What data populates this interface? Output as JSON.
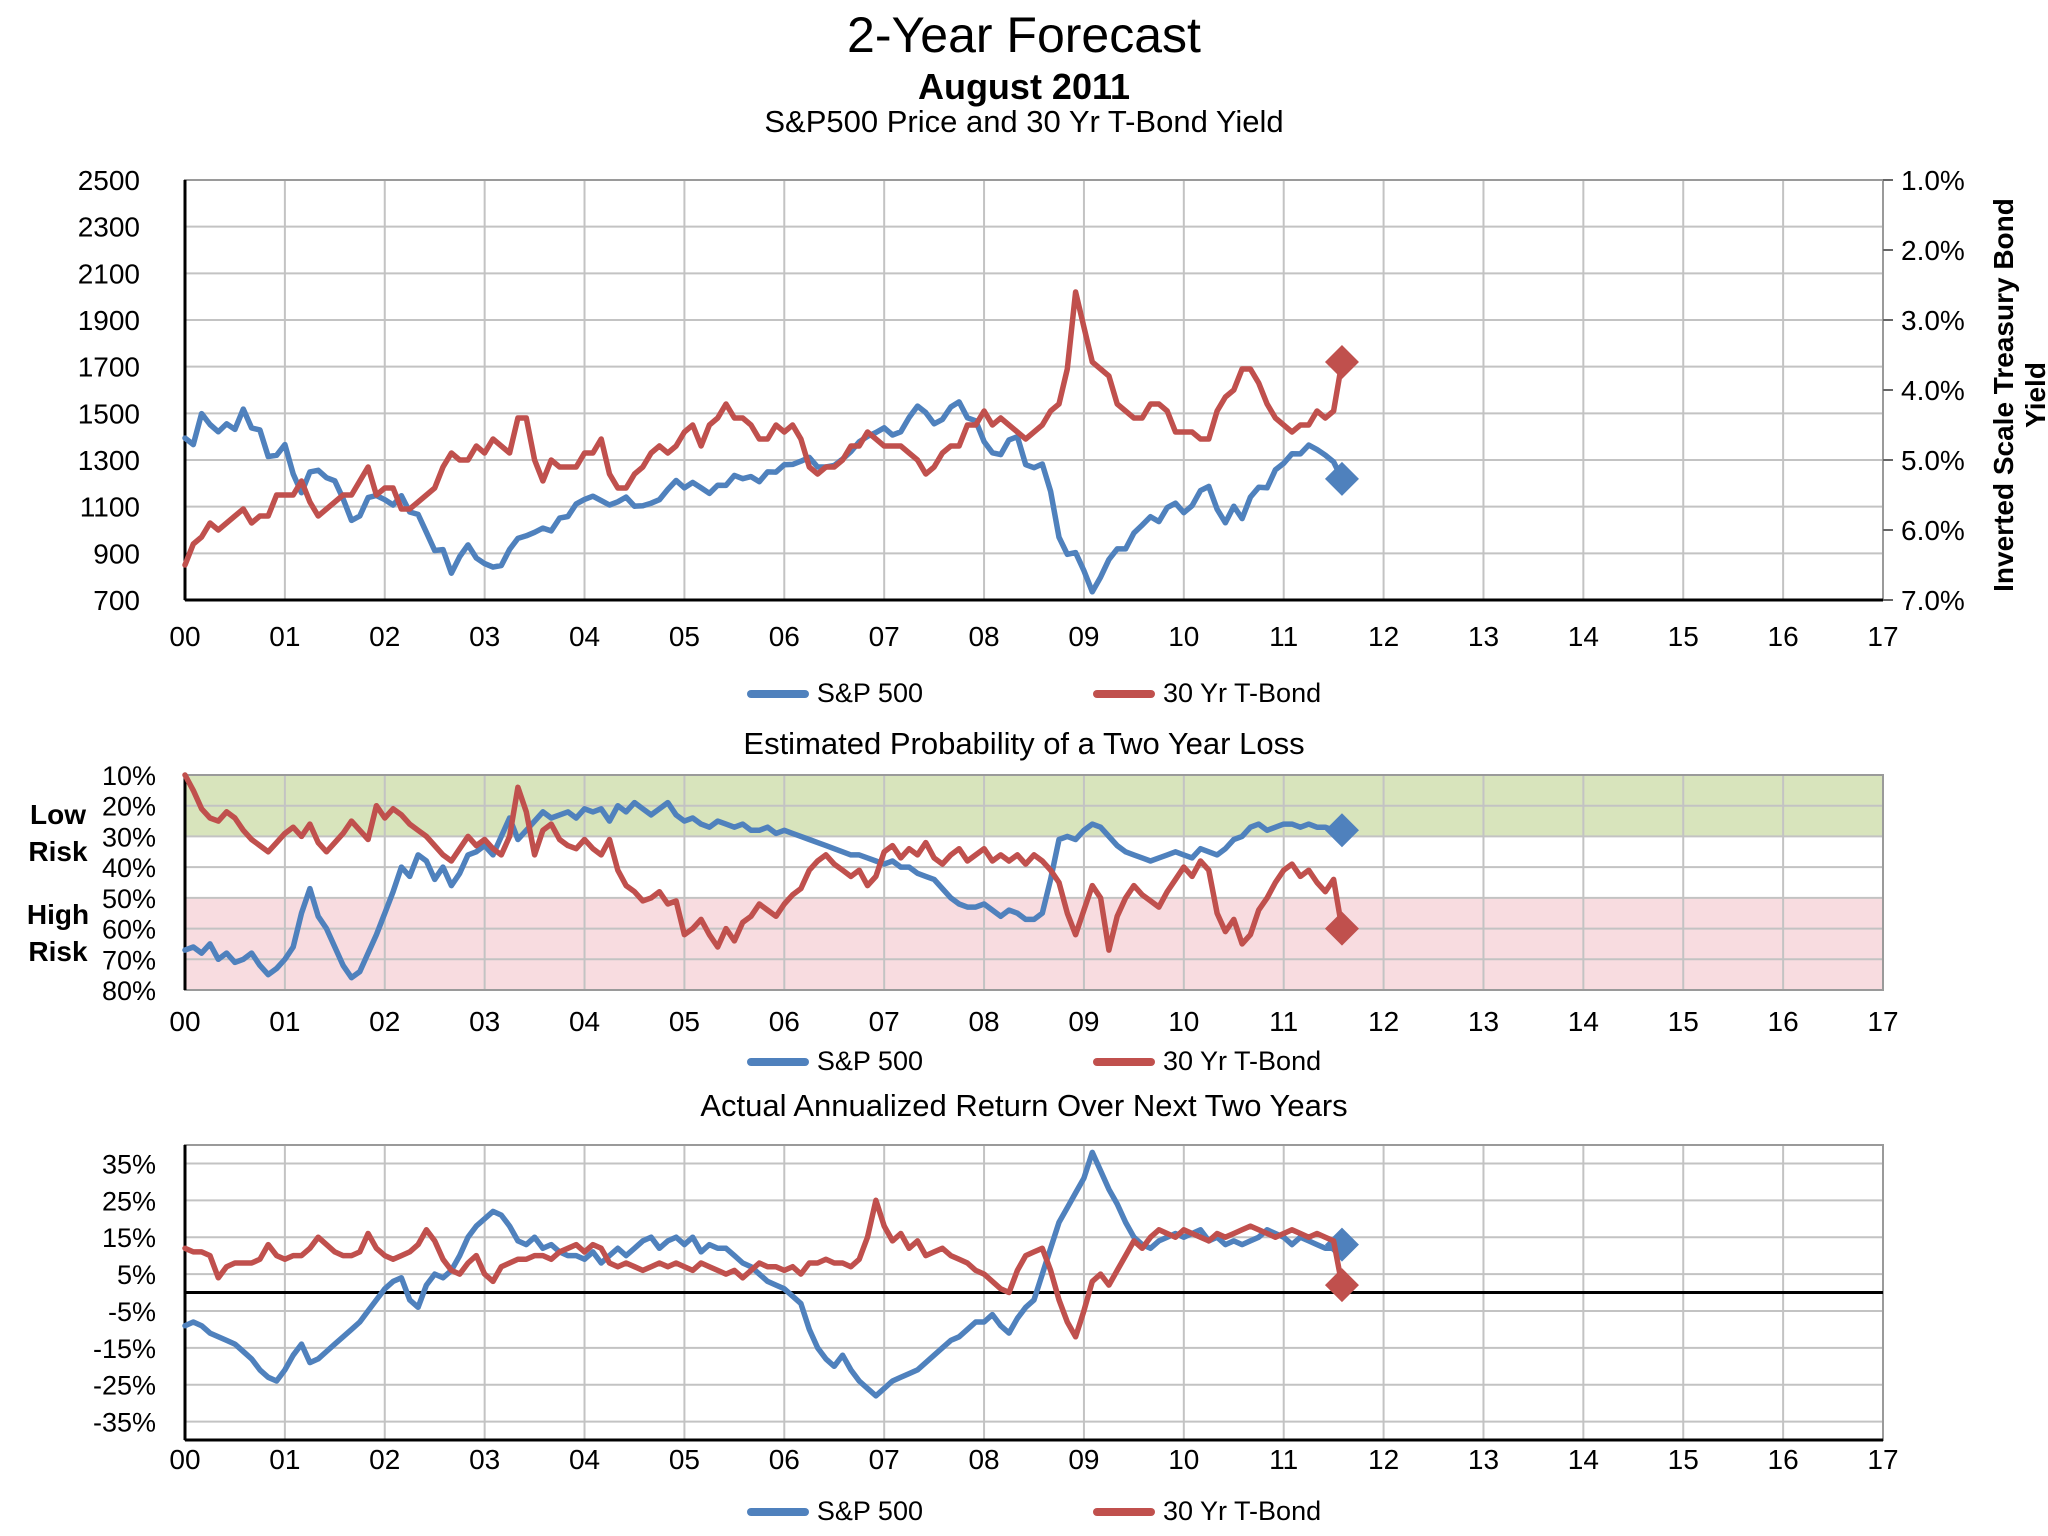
{
  "title": "2-Year Forecast",
  "subtitle": "August 2011",
  "colors": {
    "sp500": "#4F81BD",
    "tbond": "#C0504D",
    "green_band": "#D8E4BC",
    "pink_band": "#F8DCE0",
    "grid": "#C3C3C3",
    "border": "#9A9A9A",
    "axis": "#000000"
  },
  "legend": {
    "sp500": "S&P 500",
    "tbond": "30 Yr T-Bond"
  },
  "risk_labels": {
    "low": [
      "Low",
      "Risk"
    ],
    "high": [
      "High",
      "Risk"
    ]
  },
  "x_ticks": [
    "00",
    "01",
    "02",
    "03",
    "04",
    "05",
    "06",
    "07",
    "08",
    "09",
    "10",
    "11",
    "12",
    "13",
    "14",
    "15",
    "16",
    "17"
  ],
  "chart_data": [
    {
      "type": "line",
      "title": "S&P500 Price and 30 Yr T-Bond Yield",
      "x_start": 2000,
      "x_step": "1 month",
      "x_range_years": [
        0,
        17
      ],
      "left_axis": {
        "min": 700,
        "max": 2500,
        "flip": false,
        "tick_values": [
          2500,
          2300,
          2100,
          1900,
          1700,
          1500,
          1300,
          1100,
          900,
          700
        ],
        "tick_labels": [
          "2500",
          "2300",
          "2100",
          "1900",
          "1700",
          "1500",
          "1300",
          "1100",
          "900",
          "700"
        ]
      },
      "right_axis": {
        "min": 1.0,
        "max": 7.0,
        "flip": true,
        "label": "Inverted Scale Treasury Bond Yield",
        "tick_values": [
          1,
          2,
          3,
          4,
          5,
          6,
          7
        ],
        "tick_labels": [
          "1.0%",
          "2.0%",
          "3.0%",
          "4.0%",
          "5.0%",
          "6.0%",
          "7.0%"
        ]
      },
      "black_bottom": true,
      "series": [
        {
          "name": "S&P 500",
          "color": "sp500",
          "axis": "left",
          "end_marker": "diamond",
          "values": [
            1394,
            1366,
            1499,
            1452,
            1421,
            1455,
            1431,
            1518,
            1437,
            1429,
            1315,
            1320,
            1366,
            1240,
            1160,
            1249,
            1256,
            1224,
            1211,
            1134,
            1041,
            1060,
            1139,
            1148,
            1130,
            1107,
            1147,
            1077,
            1067,
            990,
            912,
            916,
            815,
            886,
            936,
            880,
            856,
            841,
            848,
            917,
            964,
            975,
            990,
            1008,
            996,
            1051,
            1058,
            1112,
            1131,
            1145,
            1126,
            1107,
            1121,
            1141,
            1102,
            1104,
            1115,
            1130,
            1174,
            1212,
            1181,
            1204,
            1181,
            1157,
            1192,
            1191,
            1234,
            1220,
            1229,
            1207,
            1249,
            1248,
            1280,
            1281,
            1295,
            1311,
            1270,
            1270,
            1277,
            1304,
            1336,
            1378,
            1401,
            1418,
            1438,
            1407,
            1421,
            1482,
            1531,
            1503,
            1455,
            1474,
            1527,
            1549,
            1481,
            1468,
            1379,
            1331,
            1323,
            1386,
            1400,
            1280,
            1267,
            1283,
            1166,
            969,
            896,
            903,
            826,
            735,
            798,
            873,
            919,
            919,
            987,
            1021,
            1057,
            1036,
            1096,
            1115,
            1074,
            1104,
            1169,
            1187,
            1089,
            1031,
            1102,
            1049,
            1141,
            1183,
            1181,
            1258,
            1286,
            1327,
            1326,
            1364,
            1345,
            1321,
            1292,
            1219
          ]
        },
        {
          "name": "30 Yr T-Bond",
          "color": "tbond",
          "axis": "right",
          "end_marker": "diamond",
          "values": [
            6.5,
            6.2,
            6.1,
            5.9,
            6.0,
            5.9,
            5.8,
            5.7,
            5.9,
            5.8,
            5.8,
            5.5,
            5.5,
            5.5,
            5.3,
            5.6,
            5.8,
            5.7,
            5.6,
            5.5,
            5.5,
            5.3,
            5.1,
            5.5,
            5.4,
            5.4,
            5.7,
            5.7,
            5.6,
            5.5,
            5.4,
            5.1,
            4.9,
            5.0,
            5.0,
            4.8,
            4.9,
            4.7,
            4.8,
            4.9,
            4.4,
            4.4,
            5.0,
            5.3,
            5.0,
            5.1,
            5.1,
            5.1,
            4.9,
            4.9,
            4.7,
            5.2,
            5.4,
            5.4,
            5.2,
            5.1,
            4.9,
            4.8,
            4.9,
            4.8,
            4.6,
            4.5,
            4.8,
            4.5,
            4.4,
            4.2,
            4.4,
            4.4,
            4.5,
            4.7,
            4.7,
            4.5,
            4.6,
            4.5,
            4.7,
            5.1,
            5.2,
            5.1,
            5.1,
            5.0,
            4.8,
            4.8,
            4.6,
            4.7,
            4.8,
            4.8,
            4.8,
            4.9,
            5.0,
            5.2,
            5.1,
            4.9,
            4.8,
            4.8,
            4.5,
            4.5,
            4.3,
            4.5,
            4.4,
            4.5,
            4.6,
            4.7,
            4.6,
            4.5,
            4.3,
            4.2,
            3.7,
            2.6,
            3.1,
            3.6,
            3.7,
            3.8,
            4.2,
            4.3,
            4.4,
            4.4,
            4.2,
            4.2,
            4.3,
            4.6,
            4.6,
            4.6,
            4.7,
            4.7,
            4.3,
            4.1,
            4.0,
            3.7,
            3.7,
            3.9,
            4.2,
            4.4,
            4.5,
            4.6,
            4.5,
            4.5,
            4.3,
            4.4,
            4.3,
            3.6
          ]
        }
      ]
    },
    {
      "type": "line",
      "title": "Estimated Probability of a Two Year Loss",
      "x_start": 2000,
      "x_step": "1 month",
      "x_range_years": [
        0,
        17
      ],
      "left_axis": {
        "min": 10,
        "max": 80,
        "flip": true,
        "tick_values": [
          10,
          20,
          30,
          40,
          50,
          60,
          70,
          80
        ],
        "tick_labels": [
          "10%",
          "20%",
          "30%",
          "40%",
          "50%",
          "60%",
          "70%",
          "80%"
        ]
      },
      "bands": [
        {
          "from": 10,
          "to": 30,
          "color": "green_band",
          "meaning": "Low Risk"
        },
        {
          "from": 50,
          "to": 80,
          "color": "pink_band",
          "meaning": "High Risk"
        }
      ],
      "black_bottom": false,
      "series": [
        {
          "name": "S&P 500",
          "color": "sp500",
          "axis": "left",
          "end_marker": "diamond",
          "values": [
            67,
            66,
            68,
            65,
            70,
            68,
            71,
            70,
            68,
            72,
            75,
            73,
            70,
            66,
            55,
            47,
            56,
            60,
            66,
            72,
            76,
            74,
            68,
            62,
            55,
            48,
            40,
            43,
            36,
            38,
            44,
            40,
            46,
            42,
            36,
            35,
            33,
            36,
            30,
            24,
            31,
            28,
            25,
            22,
            24,
            23,
            22,
            24,
            21,
            22,
            21,
            25,
            20,
            22,
            19,
            21,
            23,
            21,
            19,
            23,
            25,
            24,
            26,
            27,
            25,
            26,
            27,
            26,
            28,
            28,
            27,
            29,
            28,
            29,
            30,
            31,
            32,
            33,
            34,
            35,
            36,
            36,
            37,
            38,
            39,
            38,
            40,
            40,
            42,
            43,
            44,
            47,
            50,
            52,
            53,
            53,
            52,
            54,
            56,
            54,
            55,
            57,
            57,
            55,
            44,
            31,
            30,
            31,
            28,
            26,
            27,
            30,
            33,
            35,
            36,
            37,
            38,
            37,
            36,
            35,
            36,
            37,
            34,
            35,
            36,
            34,
            31,
            30,
            27,
            26,
            28,
            27,
            26,
            26,
            27,
            26,
            27,
            27,
            28,
            28
          ]
        },
        {
          "name": "30 Yr T-Bond",
          "color": "tbond",
          "axis": "left",
          "end_marker": "diamond",
          "values": [
            10,
            15,
            21,
            24,
            25,
            22,
            24,
            28,
            31,
            33,
            35,
            32,
            29,
            27,
            30,
            26,
            32,
            35,
            32,
            29,
            25,
            28,
            31,
            20,
            24,
            21,
            23,
            26,
            28,
            30,
            33,
            36,
            38,
            34,
            30,
            33,
            31,
            34,
            36,
            30,
            14,
            22,
            36,
            28,
            26,
            31,
            33,
            34,
            31,
            34,
            36,
            31,
            41,
            46,
            48,
            51,
            50,
            48,
            52,
            51,
            62,
            60,
            57,
            62,
            66,
            60,
            64,
            58,
            56,
            52,
            54,
            56,
            52,
            49,
            47,
            41,
            38,
            36,
            39,
            41,
            43,
            41,
            46,
            43,
            35,
            33,
            37,
            34,
            36,
            32,
            37,
            39,
            36,
            34,
            38,
            36,
            34,
            38,
            36,
            38,
            36,
            39,
            36,
            38,
            41,
            45,
            55,
            62,
            54,
            46,
            50,
            67,
            56,
            50,
            46,
            49,
            51,
            53,
            48,
            44,
            40,
            43,
            38,
            41,
            55,
            61,
            57,
            65,
            62,
            54,
            50,
            45,
            41,
            39,
            43,
            41,
            45,
            48,
            44,
            60
          ]
        }
      ]
    },
    {
      "type": "line",
      "title": "Actual Annualized Return Over Next Two Years",
      "x_start": 2000,
      "x_step": "1 month",
      "x_range_years": [
        0,
        17
      ],
      "left_axis": {
        "min": -40,
        "max": 40,
        "flip": false,
        "tick_values": [
          35,
          25,
          15,
          5,
          -5,
          -15,
          -25,
          -35
        ],
        "tick_labels": [
          "35%",
          "25%",
          "15%",
          "5%",
          "-5%",
          "-15%",
          "-25%",
          "-35%"
        ]
      },
      "zero_line": true,
      "black_bottom": true,
      "series": [
        {
          "name": "S&P 500",
          "color": "sp500",
          "axis": "left",
          "end_marker": "diamond",
          "values": [
            -9,
            -8,
            -9,
            -11,
            -12,
            -13,
            -14,
            -16,
            -18,
            -21,
            -23,
            -24,
            -21,
            -17,
            -14,
            -19,
            -18,
            -16,
            -14,
            -12,
            -10,
            -8,
            -5,
            -2,
            1,
            3,
            4,
            -2,
            -4,
            2,
            5,
            4,
            6,
            10,
            15,
            18,
            20,
            22,
            21,
            18,
            14,
            13,
            15,
            12,
            13,
            11,
            10,
            10,
            9,
            11,
            8,
            10,
            12,
            10,
            12,
            14,
            15,
            12,
            14,
            15,
            13,
            15,
            11,
            13,
            12,
            12,
            10,
            8,
            7,
            5,
            3,
            2,
            1,
            -1,
            -3,
            -10,
            -15,
            -18,
            -20,
            -17,
            -21,
            -24,
            -26,
            -28,
            -26,
            -24,
            -23,
            -22,
            -21,
            -19,
            -17,
            -15,
            -13,
            -12,
            -10,
            -8,
            -8,
            -6,
            -9,
            -11,
            -7,
            -4,
            -2,
            5,
            12,
            19,
            23,
            27,
            31,
            38,
            33,
            28,
            24,
            19,
            15,
            13,
            12,
            14,
            15,
            16,
            15,
            16,
            17,
            14,
            15,
            13,
            14,
            13,
            14,
            15,
            17,
            16,
            15,
            13,
            15,
            14,
            13,
            12,
            12,
            13
          ]
        },
        {
          "name": "30 Yr T-Bond",
          "color": "tbond",
          "axis": "left",
          "end_marker": "diamond",
          "values": [
            12,
            11,
            11,
            10,
            4,
            7,
            8,
            8,
            8,
            9,
            13,
            10,
            9,
            10,
            10,
            12,
            15,
            13,
            11,
            10,
            10,
            11,
            16,
            12,
            10,
            9,
            10,
            11,
            13,
            17,
            14,
            9,
            6,
            5,
            8,
            10,
            5,
            3,
            7,
            8,
            9,
            9,
            10,
            10,
            9,
            11,
            12,
            13,
            11,
            13,
            12,
            8,
            7,
            8,
            7,
            6,
            7,
            8,
            7,
            8,
            7,
            6,
            8,
            7,
            6,
            5,
            6,
            4,
            6,
            8,
            7,
            7,
            6,
            7,
            5,
            8,
            8,
            9,
            8,
            8,
            7,
            9,
            15,
            25,
            18,
            14,
            16,
            12,
            14,
            10,
            11,
            12,
            10,
            9,
            8,
            6,
            5,
            3,
            1,
            0,
            6,
            10,
            11,
            12,
            6,
            -2,
            -8,
            -12,
            -5,
            3,
            5,
            2,
            6,
            10,
            14,
            12,
            15,
            17,
            16,
            15,
            17,
            16,
            15,
            14,
            16,
            15,
            16,
            17,
            18,
            17,
            16,
            15,
            16,
            17,
            16,
            15,
            16,
            15,
            14,
            2
          ]
        }
      ]
    }
  ]
}
